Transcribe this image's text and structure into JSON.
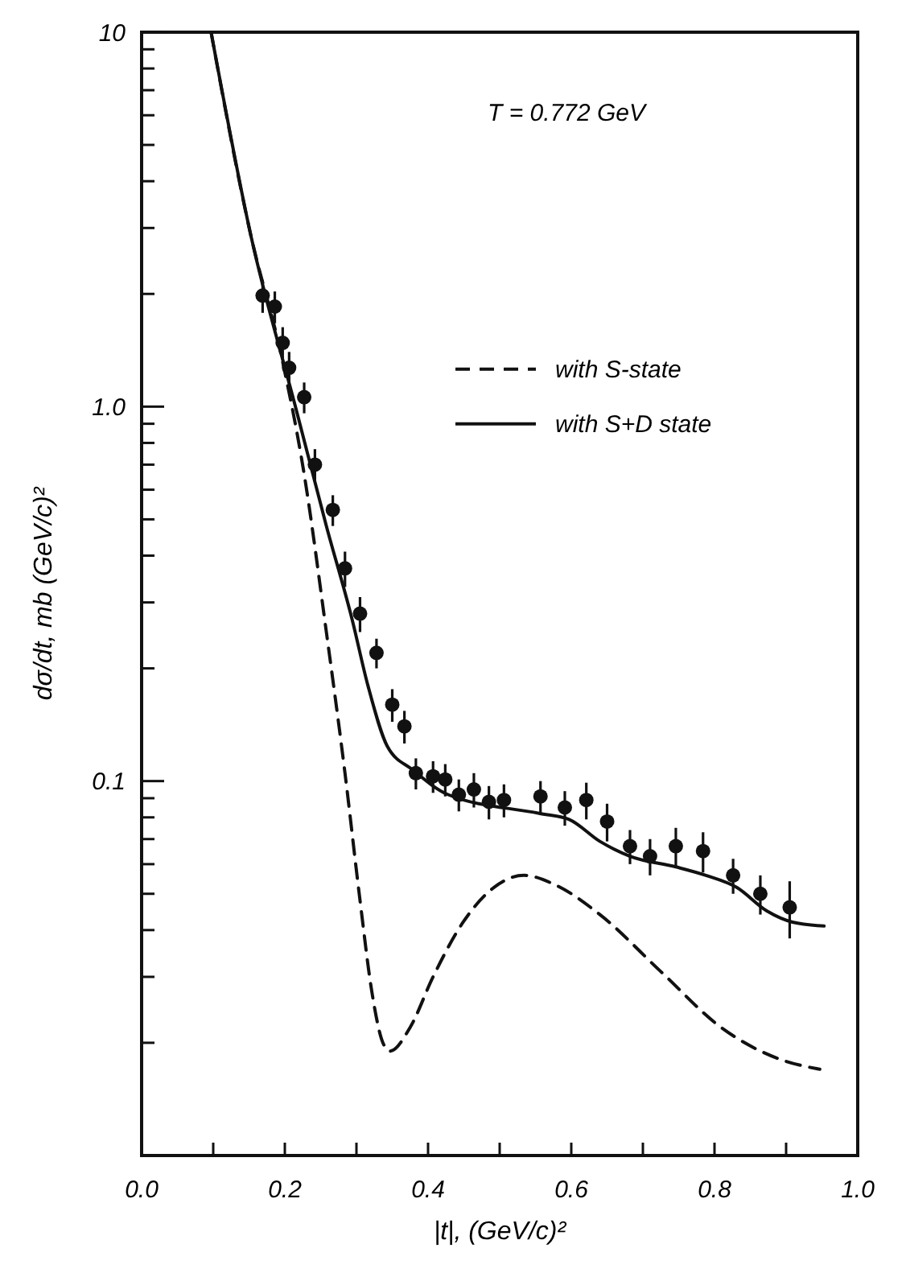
{
  "chart_data": {
    "type": "line",
    "xlabel": "|t|, (GeV/c)²",
    "ylabel": "dσ/dt, mb (GeV/c)²",
    "log": "y",
    "grid": false,
    "legend": "right",
    "annotations": [
      "T = 0.772 GeV"
    ],
    "xlim": [
      0,
      1
    ],
    "ylim": [
      0.01,
      10
    ],
    "xticks": [
      {
        "value": 0,
        "label": "0.0"
      },
      {
        "value": 0.1,
        "label": null
      },
      0.2,
      {
        "value": 0.3,
        "label": null
      },
      0.4,
      {
        "value": 0.5,
        "label": null
      },
      0.6,
      {
        "value": 0.7,
        "label": null
      },
      0.8,
      {
        "value": 0.9,
        "label": null
      },
      {
        "value": 1,
        "label": "1.0"
      }
    ],
    "yticks": [
      {
        "value": 0.02,
        "label": null
      },
      {
        "value": 0.03,
        "label": null
      },
      {
        "value": 0.04,
        "label": null
      },
      {
        "value": 0.05,
        "label": null
      },
      {
        "value": 0.06,
        "label": null
      },
      {
        "value": 0.07,
        "label": null
      },
      {
        "value": 0.08,
        "label": null
      },
      {
        "value": 0.09,
        "label": null
      },
      0.1,
      {
        "value": 0.2,
        "label": null
      },
      {
        "value": 0.3,
        "label": null
      },
      {
        "value": 0.4,
        "label": null
      },
      {
        "value": 0.5,
        "label": null
      },
      {
        "value": 0.6,
        "label": null
      },
      {
        "value": 0.7,
        "label": null
      },
      {
        "value": 0.8,
        "label": null
      },
      {
        "value": 0.9,
        "label": null
      },
      {
        "value": 1,
        "label": "1.0"
      },
      {
        "value": 2,
        "label": null
      },
      {
        "value": 3,
        "label": null
      },
      {
        "value": 4,
        "label": null
      },
      {
        "value": 5,
        "label": null
      },
      {
        "value": 6,
        "label": null
      },
      {
        "value": 7,
        "label": null
      },
      {
        "value": 8,
        "label": null
      },
      {
        "value": 9,
        "label": null
      },
      10
    ],
    "series": [
      {
        "name": "with S-state",
        "color": "#111111",
        "line_style": "dashed",
        "marker": "none",
        "x": [
          0.097,
          0.153,
          0.195,
          0.227,
          0.258,
          0.284,
          0.305,
          0.322,
          0.337,
          0.347,
          0.375,
          0.407,
          0.449,
          0.492,
          0.534,
          0.576,
          0.64,
          0.725,
          0.809,
          0.894,
          0.947
        ],
        "values": [
          10,
          2.84,
          1.37,
          0.66,
          0.25,
          0.105,
          0.048,
          0.027,
          0.02,
          0.019,
          0.022,
          0.03,
          0.042,
          0.052,
          0.056,
          0.053,
          0.044,
          0.031,
          0.022,
          0.018,
          0.017
        ]
      },
      {
        "name": "with S+D state",
        "color": "#111111",
        "line_style": "solid",
        "marker": "none",
        "x": [
          0.097,
          0.153,
          0.216,
          0.258,
          0.294,
          0.316,
          0.343,
          0.379,
          0.428,
          0.555,
          0.597,
          0.64,
          0.682,
          0.746,
          0.788,
          0.831,
          0.873,
          0.909,
          0.953
        ],
        "values": [
          10,
          2.84,
          0.98,
          0.48,
          0.27,
          0.18,
          0.124,
          0.107,
          0.092,
          0.082,
          0.079,
          0.069,
          0.063,
          0.059,
          0.056,
          0.052,
          0.045,
          0.042,
          0.041
        ]
      },
      {
        "type": "scatter",
        "color": "#111111",
        "marker": "circle",
        "x": [
          0.169,
          0.186,
          0.197,
          0.206,
          0.227,
          0.242,
          0.267,
          0.284,
          0.305,
          0.328,
          0.35,
          0.367,
          0.383,
          0.407,
          0.424,
          0.443,
          0.464,
          0.485,
          0.506,
          0.557,
          0.591,
          0.621,
          0.65,
          0.682,
          0.71,
          0.746,
          0.784,
          0.826,
          0.864,
          0.905
        ],
        "values": [
          1.98,
          1.85,
          1.48,
          1.27,
          1.06,
          0.7,
          0.53,
          0.37,
          0.28,
          0.22,
          0.16,
          0.14,
          0.105,
          0.103,
          0.101,
          0.092,
          0.095,
          0.088,
          0.089,
          0.091,
          0.085,
          0.089,
          0.078,
          0.067,
          0.063,
          0.067,
          0.065,
          0.056,
          0.05,
          0.046
        ],
        "errors": [
          0.2,
          0.18,
          0.15,
          0.13,
          0.1,
          0.07,
          0.05,
          0.04,
          0.03,
          0.02,
          0.016,
          0.014,
          0.01,
          0.01,
          0.01,
          0.009,
          0.01,
          0.009,
          0.009,
          0.009,
          0.009,
          0.01,
          0.009,
          0.007,
          0.007,
          0.008,
          0.008,
          0.006,
          0.006,
          0.008
        ]
      }
    ]
  }
}
